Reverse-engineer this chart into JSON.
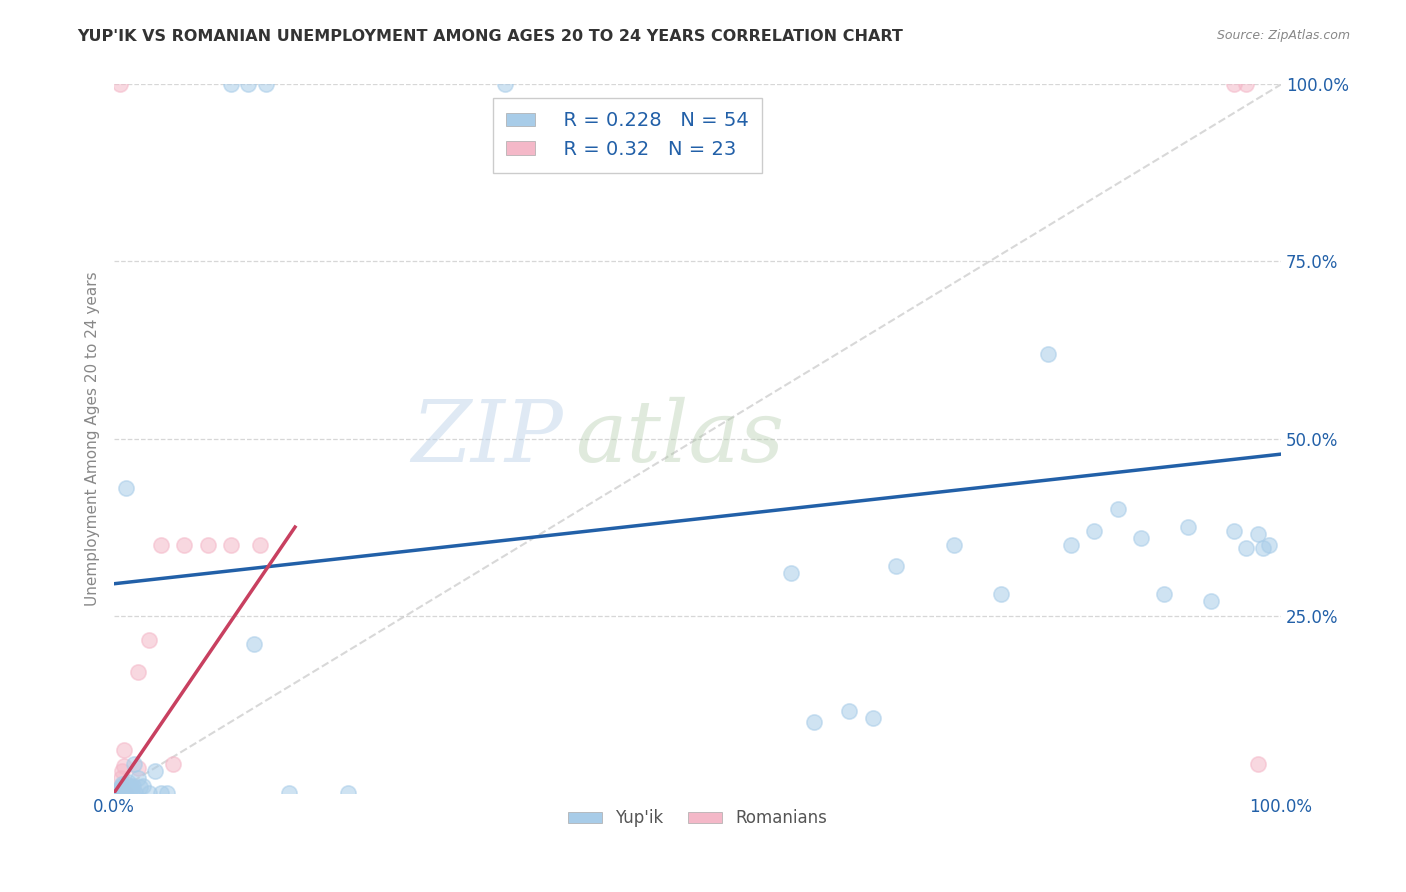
{
  "title": "YUP'IK VS ROMANIAN UNEMPLOYMENT AMONG AGES 20 TO 24 YEARS CORRELATION CHART",
  "source": "Source: ZipAtlas.com",
  "ylabel": "Unemployment Among Ages 20 to 24 years",
  "xlim": [
    0,
    1
  ],
  "ylim": [
    0,
    1
  ],
  "xticks": [
    0.0,
    1.0
  ],
  "yticks": [
    0.25,
    0.5,
    0.75,
    1.0
  ],
  "xtick_labels": [
    "0.0%",
    "100.0%"
  ],
  "ytick_labels": [
    "25.0%",
    "50.0%",
    "75.0%",
    "100.0%"
  ],
  "yup_ik_color": "#a8cce8",
  "romanian_color": "#f4b8c8",
  "yup_ik_line_color": "#2260a8",
  "romanian_line_color": "#c84060",
  "yup_ik_R": 0.228,
  "yup_ik_N": 54,
  "romanian_R": 0.32,
  "romanian_N": 23,
  "legend_color": "#2260a8",
  "watermark_zip": "ZIP",
  "watermark_atlas": "atlas",
  "background_color": "#ffffff",
  "marker_size": 120,
  "marker_alpha": 0.55,
  "line_width": 2.5,
  "yup_ik_x": [
    0.003,
    0.004,
    0.005,
    0.005,
    0.006,
    0.007,
    0.007,
    0.008,
    0.009,
    0.009,
    0.01,
    0.011,
    0.012,
    0.013,
    0.014,
    0.015,
    0.016,
    0.017,
    0.018,
    0.02,
    0.022,
    0.025,
    0.03,
    0.035,
    0.04,
    0.045,
    0.01,
    0.12,
    0.15,
    0.2,
    0.58,
    0.6,
    0.63,
    0.65,
    0.67,
    0.72,
    0.76,
    0.8,
    0.82,
    0.84,
    0.86,
    0.88,
    0.9,
    0.92,
    0.94,
    0.96,
    0.97,
    0.98,
    0.985,
    0.99,
    0.1,
    0.115,
    0.13,
    0.335
  ],
  "yup_ik_y": [
    0.0,
    0.0,
    0.0,
    0.005,
    0.008,
    0.01,
    0.012,
    0.0,
    0.005,
    0.01,
    0.012,
    0.003,
    0.015,
    0.0,
    0.008,
    0.0,
    0.01,
    0.04,
    0.0,
    0.02,
    0.008,
    0.01,
    0.0,
    0.03,
    0.0,
    0.0,
    0.43,
    0.21,
    0.0,
    0.0,
    0.31,
    0.1,
    0.115,
    0.105,
    0.32,
    0.35,
    0.28,
    0.62,
    0.35,
    0.37,
    0.4,
    0.36,
    0.28,
    0.375,
    0.27,
    0.37,
    0.345,
    0.365,
    0.345,
    0.35,
    1.0,
    1.0,
    1.0,
    1.0
  ],
  "romanian_x": [
    0.003,
    0.004,
    0.005,
    0.006,
    0.006,
    0.007,
    0.008,
    0.008,
    0.009,
    0.01,
    0.02,
    0.03,
    0.04,
    0.06,
    0.08,
    0.1,
    0.125,
    0.005,
    0.02,
    0.05,
    0.96,
    0.97,
    0.98
  ],
  "romanian_y": [
    0.0,
    0.0,
    0.005,
    0.01,
    0.02,
    0.03,
    0.038,
    0.06,
    0.0,
    0.0,
    0.17,
    0.215,
    0.35,
    0.35,
    0.35,
    0.35,
    0.35,
    1.0,
    0.035,
    0.04,
    1.0,
    1.0,
    0.04
  ],
  "yup_ik_line_x": [
    0.0,
    1.0
  ],
  "yup_ik_line_y": [
    0.295,
    0.478
  ],
  "romanian_line_x": [
    0.0,
    0.155
  ],
  "romanian_line_y": [
    0.0,
    0.375
  ]
}
